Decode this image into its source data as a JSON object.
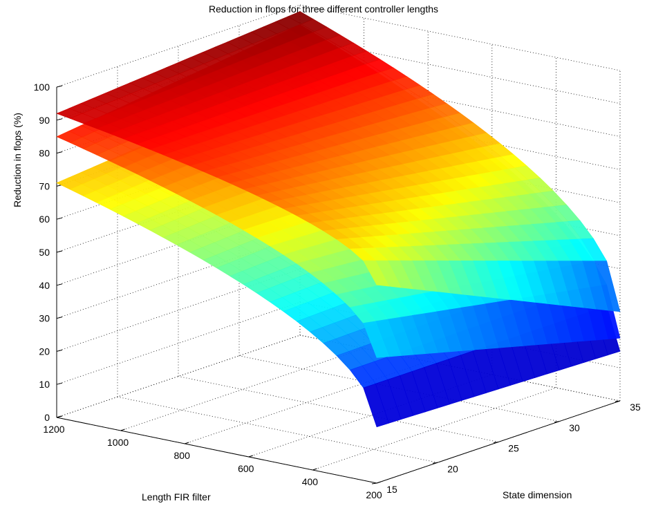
{
  "chart_data": {
    "type": "surface3d",
    "title": "Reduction in flops for three different controller lengths",
    "xlabel": "Length FIR filter",
    "ylabel": "State dimension",
    "zlabel": "Reduction in flops (%)",
    "x_ticks": [
      "1200",
      "1000",
      "800",
      "600",
      "400",
      "200"
    ],
    "y_ticks": [
      "15",
      "20",
      "25",
      "30",
      "35"
    ],
    "z_ticks": [
      "0",
      "10",
      "20",
      "30",
      "40",
      "50",
      "60",
      "70",
      "80",
      "90",
      "100"
    ],
    "xlim": [
      200,
      1200
    ],
    "ylim": [
      15,
      35
    ],
    "zlim": [
      0,
      100
    ],
    "grid": true,
    "colormap": "jet",
    "series": [
      {
        "corners": {
          "x1200_y15": 71,
          "x1200_y35": 78,
          "x200_y15": 17,
          "x200_y35": 15
        }
      },
      {
        "corners": {
          "x1200_y15": 85,
          "x1200_y35": 94,
          "x200_y15": 38,
          "x200_y35": 19
        }
      },
      {
        "corners": {
          "x1200_y15": 92,
          "x1200_y35": 98,
          "x200_y15": 60,
          "x200_y35": 27
        }
      }
    ]
  }
}
